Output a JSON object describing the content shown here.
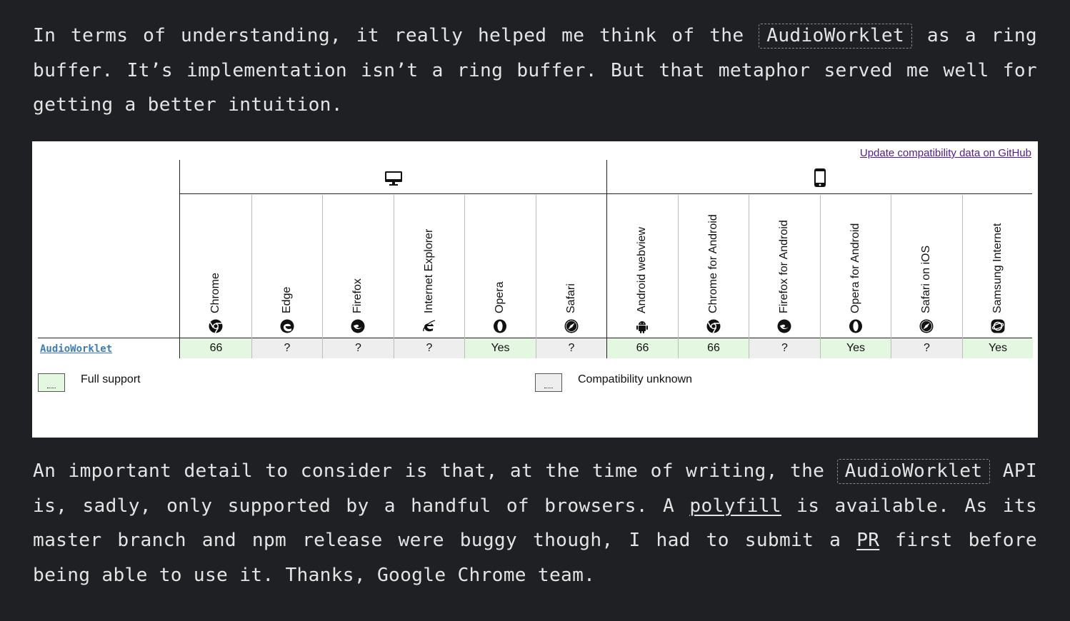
{
  "paragraph_top": {
    "before_code": "In terms of understanding, it really helped me think of the ",
    "code": "AudioWorklet",
    "after_code": " as a ring buffer. It’s implementation isn’t a ring buffer. But that metaphor served me well for getting a better intuition."
  },
  "compat_table": {
    "github_link": "Update compatibility data on GitHub",
    "platforms": [
      {
        "name": "desktop",
        "icon": "desktop-monitor-icon"
      },
      {
        "name": "mobile",
        "icon": "mobile-phone-icon"
      }
    ],
    "browsers": [
      {
        "label": "Chrome",
        "icon": "chrome-icon",
        "support": "66",
        "status": "yes"
      },
      {
        "label": "Edge",
        "icon": "edge-icon",
        "support": "?",
        "status": "unknown"
      },
      {
        "label": "Firefox",
        "icon": "firefox-icon",
        "support": "?",
        "status": "unknown"
      },
      {
        "label": "Internet Explorer",
        "icon": "internet-explorer-icon",
        "support": "?",
        "status": "unknown"
      },
      {
        "label": "Opera",
        "icon": "opera-icon",
        "support": "Yes",
        "status": "yes"
      },
      {
        "label": "Safari",
        "icon": "safari-icon",
        "support": "?",
        "status": "unknown"
      },
      {
        "label": "Android webview",
        "icon": "android-icon",
        "support": "66",
        "status": "yes"
      },
      {
        "label": "Chrome for Android",
        "icon": "chrome-icon",
        "support": "66",
        "status": "yes"
      },
      {
        "label": "Firefox for Android",
        "icon": "firefox-icon",
        "support": "?",
        "status": "unknown"
      },
      {
        "label": "Opera for Android",
        "icon": "opera-icon",
        "support": "Yes",
        "status": "yes"
      },
      {
        "label": "Safari on iOS",
        "icon": "safari-icon",
        "support": "?",
        "status": "unknown"
      },
      {
        "label": "Samsung Internet",
        "icon": "samsung-internet-icon",
        "support": "Yes",
        "status": "yes"
      }
    ],
    "feature": "AudioWorklet",
    "legend": {
      "full_support": "Full support",
      "unknown": "Compatibility unknown"
    },
    "colors": {
      "full_support_bg": "#e4f8e1",
      "unknown_bg": "#eeeeee"
    }
  },
  "paragraph_bottom": {
    "t1": "An important detail to consider is that, at the time of writing, the ",
    "code": "AudioWorklet",
    "t2": " API is, sadly, only supported by a handful of browsers. A ",
    "link1": "polyfill",
    "t3": " is available. As its master branch and npm release were buggy though, I had to submit a ",
    "link2": "PR",
    "t4": " first be­fore being able to use it. Thanks, Google Chrome team."
  }
}
